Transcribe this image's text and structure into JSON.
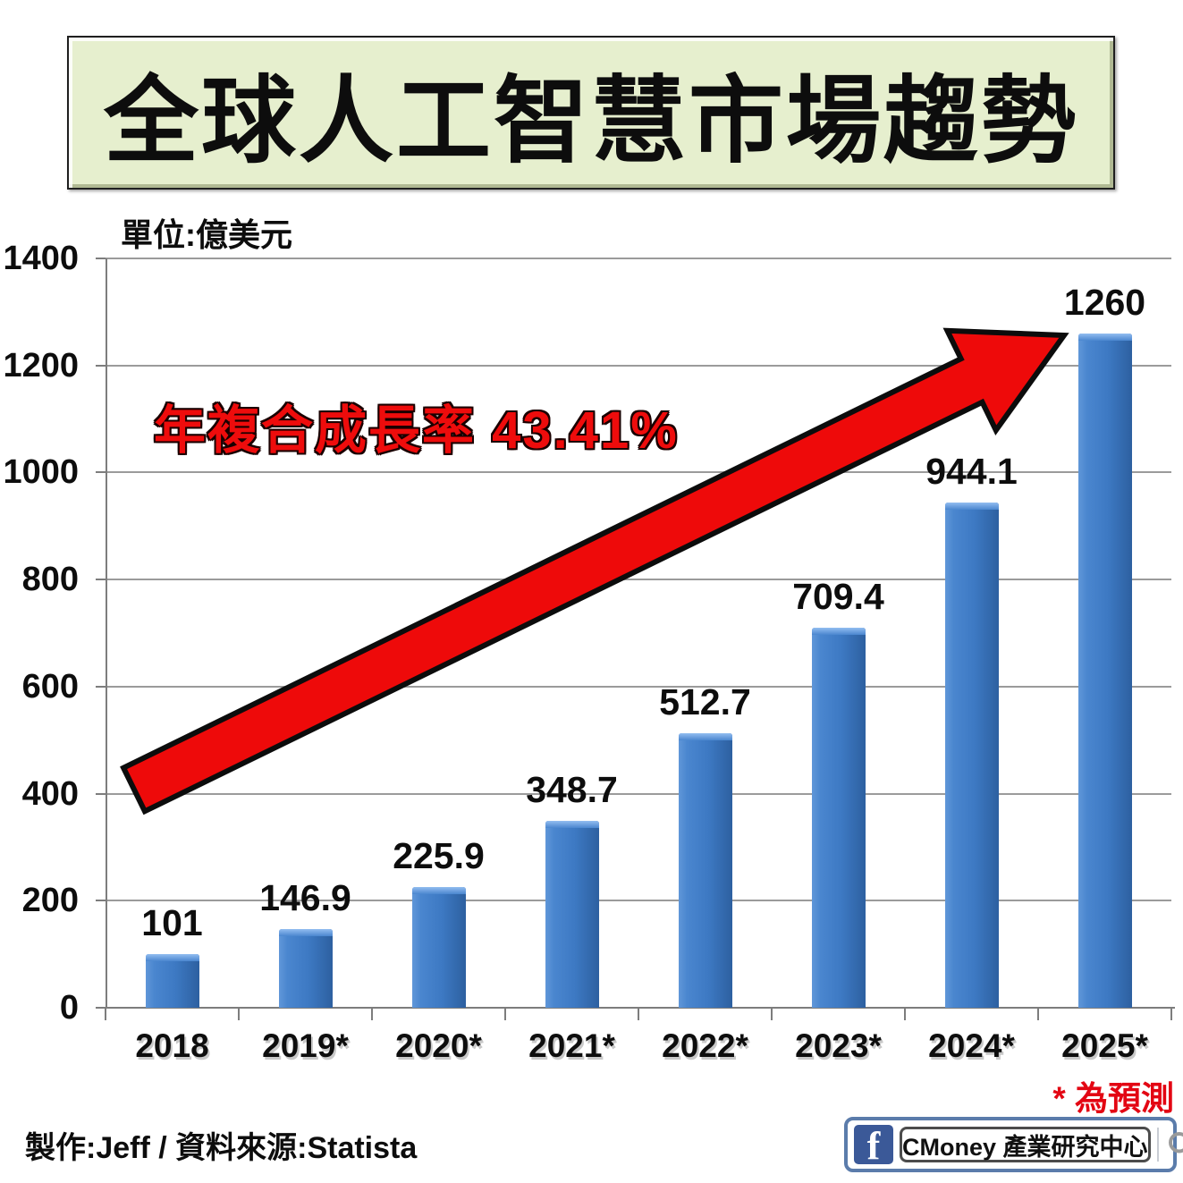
{
  "title": "全球人工智慧市場趨勢",
  "unit_label": "單位:億美元",
  "annotation": {
    "cagr_text": "年複合成長率 43.41%",
    "color": "#ee0c0c"
  },
  "footnote": "* 為預測",
  "credit": "製作:Jeff / 資料來源:Statista",
  "facebook_banner": {
    "page_name": "CMoney 產業研究中心"
  },
  "colors": {
    "bar_blue": "#3d79c3",
    "arrow_red": "#ee0a0a",
    "banner_green": "#e6efce",
    "footnote_red": "#e30613",
    "facebook_blue": "#3b5998",
    "gridline_gray": "#9b9b9b"
  },
  "chart_data": {
    "type": "bar",
    "title": "全球人工智慧市場趨勢",
    "unit": "單位:億美元",
    "categories": [
      "2018",
      "2019*",
      "2020*",
      "2021*",
      "2022*",
      "2023*",
      "2024*",
      "2025*"
    ],
    "values": [
      101,
      146.9,
      225.9,
      348.7,
      512.7,
      709.4,
      944.1,
      1260
    ],
    "value_labels": [
      "101",
      "146.9",
      "225.9",
      "348.7",
      "512.7",
      "709.4",
      "944.1",
      "1260"
    ],
    "ylim": [
      0,
      1400
    ],
    "ytick_interval": 200,
    "ytick_labels": [
      "0",
      "200",
      "400",
      "600",
      "800",
      "1000",
      "1200",
      "1400"
    ],
    "grid": true,
    "legend": "none",
    "annotation_text": "年複合成長率 43.41%"
  }
}
